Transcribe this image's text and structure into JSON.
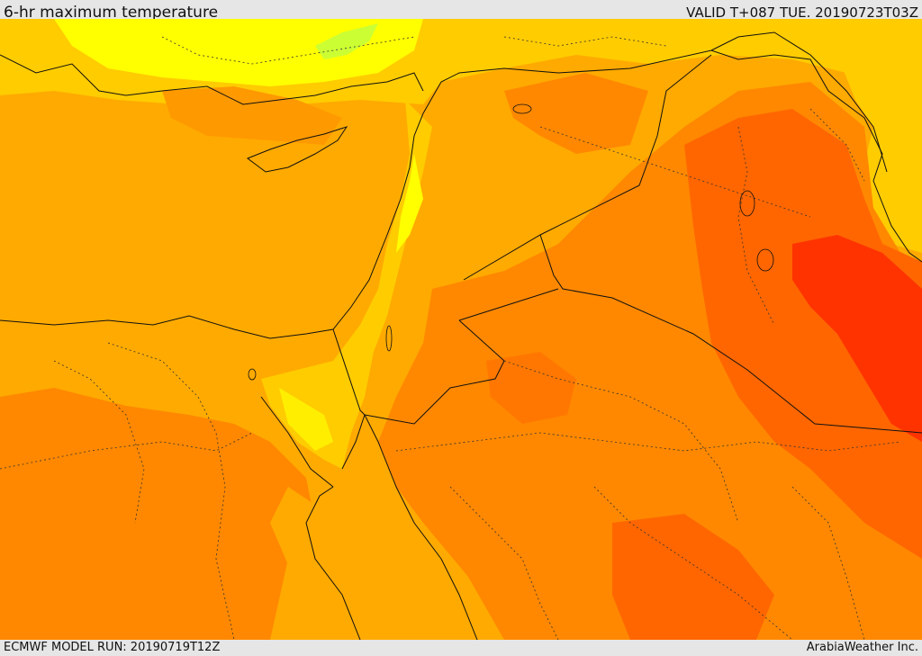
{
  "header": {
    "title": "6-hr maximum temperature",
    "valid": "VALID T+087 TUE. 20190723T03Z"
  },
  "footer": {
    "model_run": "ECMWF MODEL RUN: 20190719T12Z",
    "credit": "ArabiaWeather Inc."
  },
  "colors": {
    "base_orange": "#ffaa00",
    "dark_orange": "#ff8800",
    "orange_red": "#ff6600",
    "red": "#ff3300",
    "yellow_orange": "#ffcc00",
    "yellow": "#ffff00",
    "green_yellow": "#ccff33",
    "border_line": "#111111"
  }
}
